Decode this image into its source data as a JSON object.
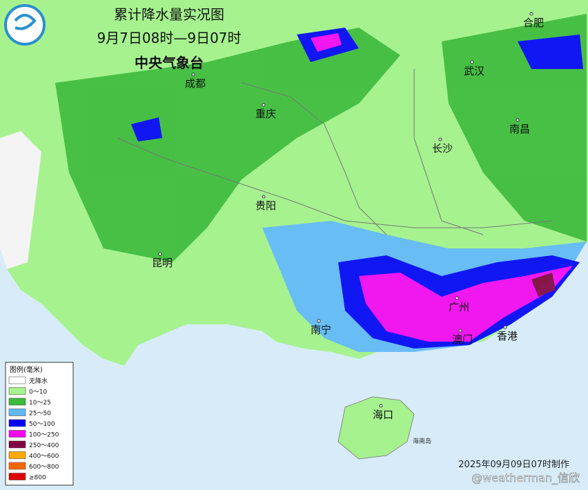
{
  "header": {
    "title": "累计降水量实况图",
    "date_range": "9月7日08时—9日07时",
    "agency": "中央气象台"
  },
  "cities": [
    {
      "label": "成都"
    },
    {
      "label": "重庆"
    },
    {
      "label": "武汉"
    },
    {
      "label": "合肥"
    },
    {
      "label": "南昌"
    },
    {
      "label": "长沙"
    },
    {
      "label": "贵阳"
    },
    {
      "label": "昆明"
    },
    {
      "label": "南宁"
    },
    {
      "label": "广州"
    },
    {
      "label": "澳门"
    },
    {
      "label": "香港"
    },
    {
      "label": "海口"
    }
  ],
  "island": "海南岛",
  "legend": {
    "title": "图例(毫米)",
    "items": [
      {
        "label": "无降水",
        "color": "#ffffff"
      },
      {
        "label": "0～10",
        "color": "#a6f28f"
      },
      {
        "label": "10～25",
        "color": "#3dba3d"
      },
      {
        "label": "25～50",
        "color": "#61b8ff"
      },
      {
        "label": "50～100",
        "color": "#0000fe"
      },
      {
        "label": "100～250",
        "color": "#fa00fa"
      },
      {
        "label": "250～400",
        "color": "#800040"
      },
      {
        "label": "400～600",
        "color": "#ffaa00"
      },
      {
        "label": "600～800",
        "color": "#ff6600"
      },
      {
        "label": "≥800",
        "color": "#e00000"
      }
    ]
  },
  "footer": {
    "made": "2025年09月09日07时制作",
    "watermark": "@weatherman_信欣"
  }
}
